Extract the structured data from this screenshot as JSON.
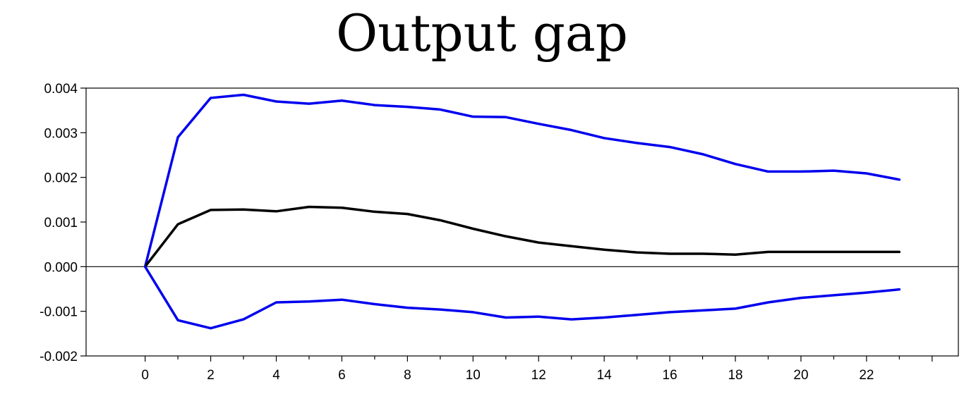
{
  "chart_data": {
    "type": "line",
    "title": "Output gap",
    "xlabel": "",
    "ylabel": "",
    "xlim": [
      -1.8,
      24.8
    ],
    "ylim": [
      -0.002,
      0.004
    ],
    "x_ticks": [
      0,
      2,
      4,
      6,
      8,
      10,
      12,
      14,
      16,
      18,
      20,
      22
    ],
    "x_tick_labels": [
      "0",
      "2",
      "4",
      "6",
      "8",
      "10",
      "12",
      "14",
      "16",
      "18",
      "20",
      "22"
    ],
    "y_ticks": [
      -0.002,
      -0.001,
      0.0,
      0.001,
      0.002,
      0.003,
      0.004
    ],
    "y_tick_labels": [
      "-0.002",
      "-0.001",
      "0.000",
      "0.001",
      "0.002",
      "0.003",
      "0.004"
    ],
    "zero_line": true,
    "grid": false,
    "x": [
      0,
      1,
      2,
      3,
      4,
      5,
      6,
      7,
      8,
      9,
      10,
      11,
      12,
      13,
      14,
      15,
      16,
      17,
      18,
      19,
      20,
      21,
      22,
      23
    ],
    "series": [
      {
        "color": "#0000ee",
        "values": [
          0.0,
          0.0029,
          0.00378,
          0.00385,
          0.0037,
          0.00365,
          0.00372,
          0.00362,
          0.00358,
          0.00352,
          0.00336,
          0.00335,
          0.0032,
          0.00306,
          0.00288,
          0.00277,
          0.00268,
          0.00252,
          0.0023,
          0.00213,
          0.00213,
          0.00215,
          0.00209,
          0.00195
        ]
      },
      {
        "color": "#000000",
        "values": [
          0.0,
          0.00095,
          0.00127,
          0.00128,
          0.00124,
          0.00134,
          0.00132,
          0.00123,
          0.00118,
          0.00104,
          0.00085,
          0.00068,
          0.00054,
          0.00046,
          0.00038,
          0.00032,
          0.00029,
          0.00029,
          0.00027,
          0.00033,
          0.00033,
          0.00033,
          0.00033,
          0.00033
        ]
      },
      {
        "color": "#0000ee",
        "values": [
          0.0,
          -0.0012,
          -0.00138,
          -0.00118,
          -0.0008,
          -0.00078,
          -0.00074,
          -0.00084,
          -0.00092,
          -0.00096,
          -0.00102,
          -0.00114,
          -0.00112,
          -0.00118,
          -0.00114,
          -0.00108,
          -0.00102,
          -0.00098,
          -0.00094,
          -0.0008,
          -0.0007,
          -0.00064,
          -0.00058,
          -0.00051
        ]
      }
    ]
  }
}
